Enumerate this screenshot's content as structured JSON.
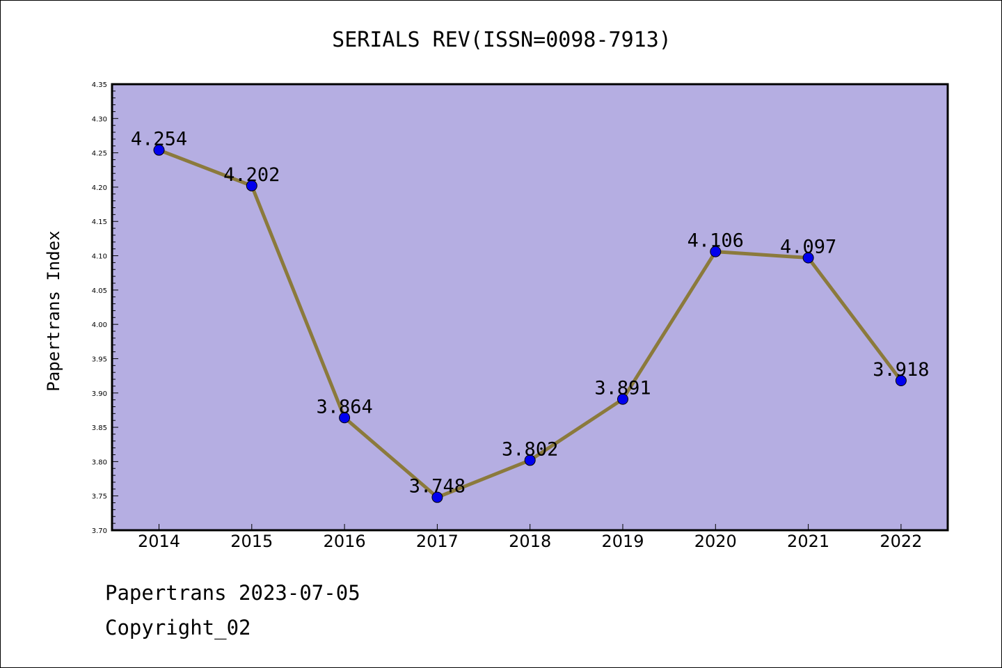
{
  "chart_data": {
    "type": "line",
    "title": "SERIALS REV(ISSN=0098-7913)",
    "xlabel": "",
    "ylabel": "Papertrans Index",
    "categories": [
      "2014",
      "2015",
      "2016",
      "2017",
      "2018",
      "2019",
      "2020",
      "2021",
      "2022"
    ],
    "series": [
      {
        "values": [
          4.254,
          4.202,
          3.864,
          3.748,
          3.802,
          3.891,
          4.106,
          4.097,
          3.918
        ],
        "labels": [
          "4.254",
          "4.202",
          "3.864",
          "3.748",
          "3.802",
          "3.891",
          "4.106",
          "4.097",
          "3.918"
        ]
      }
    ],
    "ylim": [
      3.7,
      4.35
    ],
    "yticks": [
      "3.70",
      "3.75",
      "3.80",
      "3.85",
      "3.90",
      "3.95",
      "4.00",
      "4.05",
      "4.10",
      "4.15",
      "4.20",
      "4.25",
      "4.30",
      "4.35"
    ],
    "grid": false,
    "legend": "none",
    "colors": {
      "plot_background": "#b5aee2",
      "line": "#8b7a3c",
      "marker": "#0000ee"
    }
  },
  "footer": {
    "date_line": "Papertrans 2023-07-05",
    "copyright": "Copyright_02"
  }
}
